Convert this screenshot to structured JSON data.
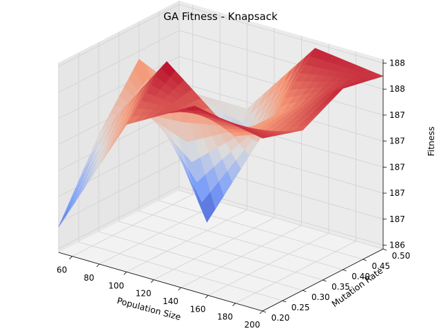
{
  "chart_data": {
    "type": "surface3d",
    "title": "GA Fitness - Knapsack",
    "xlabel": "Population Size",
    "ylabel": "Mutation Rate",
    "zlabel": "Fitness",
    "x": [
      50,
      100,
      150,
      200
    ],
    "y": [
      0.2,
      0.3,
      0.4,
      0.5
    ],
    "z": [
      [
        186.25,
        187.7,
        188.15,
        188.0
      ],
      [
        187.1,
        188.2,
        187.55,
        187.85
      ],
      [
        187.75,
        186.05,
        187.55,
        188.1
      ],
      [
        187.15,
        187.15,
        188.1,
        188.0
      ]
    ],
    "xlim": [
      50,
      200
    ],
    "ylim": [
      0.2,
      0.5
    ],
    "zlim": [
      185.95,
      188.2
    ],
    "colormap": "coolwarm",
    "grid": true,
    "x_ticks": [
      "60",
      "80",
      "100",
      "120",
      "140",
      "160",
      "180",
      "200"
    ],
    "y_ticks": [
      "0.20",
      "0.25",
      "0.30",
      "0.35",
      "0.40",
      "0.45",
      "0.50"
    ],
    "z_ticks": [
      "186",
      "187",
      "187",
      "187",
      "187",
      "187",
      "188",
      "188"
    ]
  }
}
